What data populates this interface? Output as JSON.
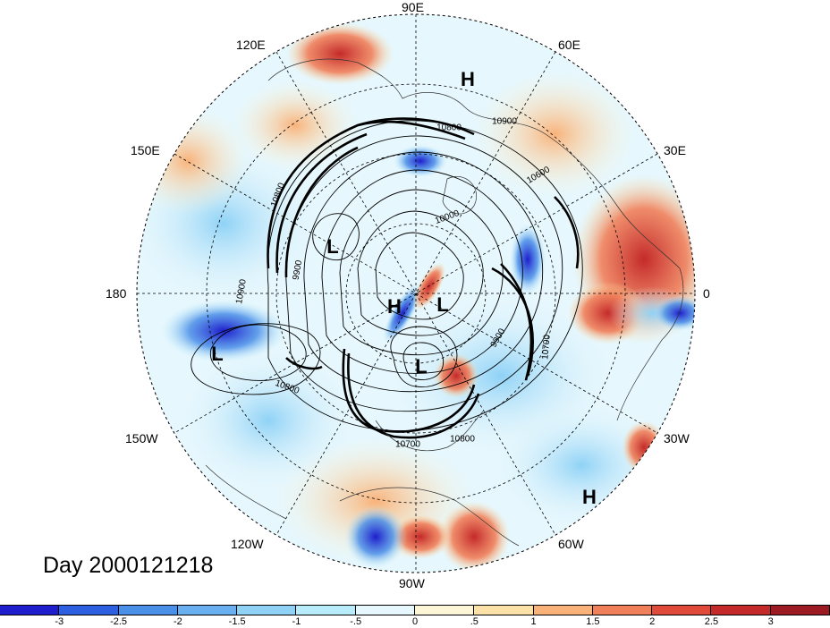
{
  "map": {
    "longitude_labels": [
      {
        "id": "lon-90e",
        "text": "90E"
      },
      {
        "id": "lon-60e",
        "text": "60E"
      },
      {
        "id": "lon-120e",
        "text": "120E"
      },
      {
        "id": "lon-150e",
        "text": "150E"
      },
      {
        "id": "lon-30e",
        "text": "30E"
      },
      {
        "id": "lon-180",
        "text": "180"
      },
      {
        "id": "lon-0",
        "text": "0"
      },
      {
        "id": "lon-150w",
        "text": "150W"
      },
      {
        "id": "lon-30w",
        "text": "30W"
      },
      {
        "id": "lon-120w",
        "text": "120W"
      },
      {
        "id": "lon-60w",
        "text": "60W"
      },
      {
        "id": "lon-90w",
        "text": "90W"
      }
    ],
    "pressure_centers": [
      {
        "id": "high-1",
        "text": "H"
      },
      {
        "id": "low-1",
        "text": "L"
      },
      {
        "id": "high-2",
        "text": "H"
      },
      {
        "id": "low-2",
        "text": "L"
      },
      {
        "id": "low-3",
        "text": "L"
      },
      {
        "id": "low-4",
        "text": "L"
      },
      {
        "id": "high-3",
        "text": "H"
      }
    ],
    "contour_labels": [
      {
        "id": "c-10900a",
        "text": "10900"
      },
      {
        "id": "c-10800a",
        "text": "10800"
      },
      {
        "id": "c-10600",
        "text": "10600"
      },
      {
        "id": "c-10000",
        "text": "10000"
      },
      {
        "id": "c-10800b",
        "text": "10800"
      },
      {
        "id": "c-10900b",
        "text": "10900"
      },
      {
        "id": "c-9900a",
        "text": "9900"
      },
      {
        "id": "c-9900b",
        "text": "9900"
      },
      {
        "id": "c-10700a",
        "text": "10700"
      },
      {
        "id": "c-10800c",
        "text": "10800"
      },
      {
        "id": "c-10700b",
        "text": "10700"
      },
      {
        "id": "c-10800d",
        "text": "10800"
      }
    ],
    "day_label": "Day 2000121218"
  },
  "colorbar": {
    "colors": [
      "#1e1ecc",
      "#2e5fe0",
      "#4a8fe8",
      "#6aaff0",
      "#8fd2f6",
      "#b9ecfb",
      "#e6f7fd",
      "#fdf6d6",
      "#fce2a8",
      "#f8b27a",
      "#f0805a",
      "#e04a3a",
      "#c42a2a",
      "#9c1a22"
    ],
    "ticks": [
      "-3",
      "-2.5",
      "-2",
      "-1.5",
      "-1",
      "-.5",
      "0",
      ".5",
      "1",
      "1.5",
      "2",
      "2.5",
      "3"
    ]
  }
}
